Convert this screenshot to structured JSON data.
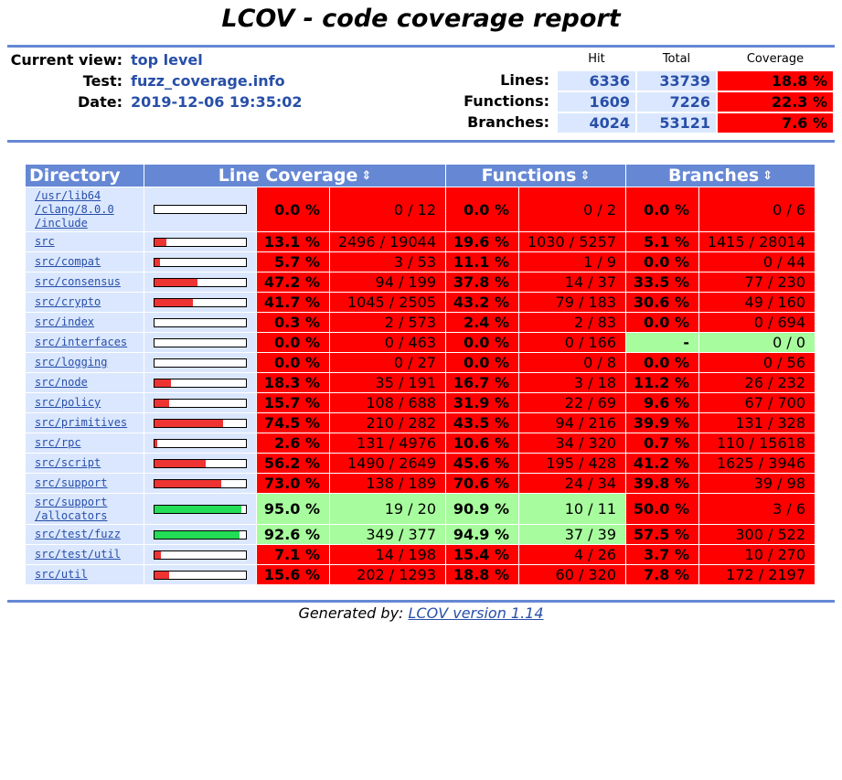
{
  "title": "LCOV - code coverage report",
  "info": {
    "current_view_label": "Current view:",
    "current_view": "top level",
    "test_label": "Test:",
    "test": "fuzz_coverage.info",
    "date_label": "Date:",
    "date": "2019-12-06 19:35:02"
  },
  "summary": {
    "headers": {
      "hit": "Hit",
      "total": "Total",
      "coverage": "Coverage"
    },
    "rows": [
      {
        "label": "Lines:",
        "hit": "6336",
        "total": "33739",
        "coverage": "18.8 %"
      },
      {
        "label": "Functions:",
        "hit": "1609",
        "total": "7226",
        "coverage": "22.3 %"
      },
      {
        "label": "Branches:",
        "hit": "4024",
        "total": "53121",
        "coverage": "7.6 %"
      }
    ]
  },
  "table": {
    "headers": {
      "directory": "Directory",
      "line_coverage": "Line Coverage",
      "functions": "Functions",
      "branches": "Branches"
    },
    "sort_glyph": "⇕",
    "colors": {
      "low": "#ff0000",
      "high": "#a7fc9d",
      "bar_low": "#ee3333",
      "bar_high": "#22dd55"
    },
    "rows": [
      {
        "dir_lines": [
          "/usr/lib64",
          "/clang/8.0.0",
          "/include"
        ],
        "line_frac": 0.0,
        "line_level": "lo",
        "line_pct": "0.0 %",
        "line_num": "0 / 12",
        "func_level": "lo",
        "func_pct": "0.0 %",
        "func_num": "0 / 2",
        "br_level": "lo",
        "br_pct": "0.0 %",
        "br_num": "0 / 6"
      },
      {
        "dir_lines": [
          "src"
        ],
        "line_frac": 0.131,
        "line_level": "lo",
        "line_pct": "13.1 %",
        "line_num": "2496 / 19044",
        "func_level": "lo",
        "func_pct": "19.6 %",
        "func_num": "1030 / 5257",
        "br_level": "lo",
        "br_pct": "5.1 %",
        "br_num": "1415 / 28014"
      },
      {
        "dir_lines": [
          "src/compat"
        ],
        "line_frac": 0.057,
        "line_level": "lo",
        "line_pct": "5.7 %",
        "line_num": "3 / 53",
        "func_level": "lo",
        "func_pct": "11.1 %",
        "func_num": "1 / 9",
        "br_level": "lo",
        "br_pct": "0.0 %",
        "br_num": "0 / 44"
      },
      {
        "dir_lines": [
          "src/consensus"
        ],
        "line_frac": 0.472,
        "line_level": "lo",
        "line_pct": "47.2 %",
        "line_num": "94 / 199",
        "func_level": "lo",
        "func_pct": "37.8 %",
        "func_num": "14 / 37",
        "br_level": "lo",
        "br_pct": "33.5 %",
        "br_num": "77 / 230"
      },
      {
        "dir_lines": [
          "src/crypto"
        ],
        "line_frac": 0.417,
        "line_level": "lo",
        "line_pct": "41.7 %",
        "line_num": "1045 / 2505",
        "func_level": "lo",
        "func_pct": "43.2 %",
        "func_num": "79 / 183",
        "br_level": "lo",
        "br_pct": "30.6 %",
        "br_num": "49 / 160"
      },
      {
        "dir_lines": [
          "src/index"
        ],
        "line_frac": 0.003,
        "line_level": "lo",
        "line_pct": "0.3 %",
        "line_num": "2 / 573",
        "func_level": "lo",
        "func_pct": "2.4 %",
        "func_num": "2 / 83",
        "br_level": "lo",
        "br_pct": "0.0 %",
        "br_num": "0 / 694"
      },
      {
        "dir_lines": [
          "src/interfaces"
        ],
        "line_frac": 0.0,
        "line_level": "lo",
        "line_pct": "0.0 %",
        "line_num": "0 / 463",
        "func_level": "lo",
        "func_pct": "0.0 %",
        "func_num": "0 / 166",
        "br_level": "hi",
        "br_pct": "-",
        "br_num": "0 / 0"
      },
      {
        "dir_lines": [
          "src/logging"
        ],
        "line_frac": 0.0,
        "line_level": "lo",
        "line_pct": "0.0 %",
        "line_num": "0 / 27",
        "func_level": "lo",
        "func_pct": "0.0 %",
        "func_num": "0 / 8",
        "br_level": "lo",
        "br_pct": "0.0 %",
        "br_num": "0 / 56"
      },
      {
        "dir_lines": [
          "src/node"
        ],
        "line_frac": 0.183,
        "line_level": "lo",
        "line_pct": "18.3 %",
        "line_num": "35 / 191",
        "func_level": "lo",
        "func_pct": "16.7 %",
        "func_num": "3 / 18",
        "br_level": "lo",
        "br_pct": "11.2 %",
        "br_num": "26 / 232"
      },
      {
        "dir_lines": [
          "src/policy"
        ],
        "line_frac": 0.157,
        "line_level": "lo",
        "line_pct": "15.7 %",
        "line_num": "108 / 688",
        "func_level": "lo",
        "func_pct": "31.9 %",
        "func_num": "22 / 69",
        "br_level": "lo",
        "br_pct": "9.6 %",
        "br_num": "67 / 700"
      },
      {
        "dir_lines": [
          "src/primitives"
        ],
        "line_frac": 0.745,
        "line_level": "lo",
        "line_pct": "74.5 %",
        "line_num": "210 / 282",
        "func_level": "lo",
        "func_pct": "43.5 %",
        "func_num": "94 / 216",
        "br_level": "lo",
        "br_pct": "39.9 %",
        "br_num": "131 / 328"
      },
      {
        "dir_lines": [
          "src/rpc"
        ],
        "line_frac": 0.026,
        "line_level": "lo",
        "line_pct": "2.6 %",
        "line_num": "131 / 4976",
        "func_level": "lo",
        "func_pct": "10.6 %",
        "func_num": "34 / 320",
        "br_level": "lo",
        "br_pct": "0.7 %",
        "br_num": "110 / 15618"
      },
      {
        "dir_lines": [
          "src/script"
        ],
        "line_frac": 0.562,
        "line_level": "lo",
        "line_pct": "56.2 %",
        "line_num": "1490 / 2649",
        "func_level": "lo",
        "func_pct": "45.6 %",
        "func_num": "195 / 428",
        "br_level": "lo",
        "br_pct": "41.2 %",
        "br_num": "1625 / 3946"
      },
      {
        "dir_lines": [
          "src/support"
        ],
        "line_frac": 0.73,
        "line_level": "lo",
        "line_pct": "73.0 %",
        "line_num": "138 / 189",
        "func_level": "lo",
        "func_pct": "70.6 %",
        "func_num": "24 / 34",
        "br_level": "lo",
        "br_pct": "39.8 %",
        "br_num": "39 / 98"
      },
      {
        "dir_lines": [
          "src/support",
          "/allocators"
        ],
        "line_frac": 0.95,
        "line_level": "hi",
        "line_pct": "95.0 %",
        "line_num": "19 / 20",
        "func_level": "hi",
        "func_pct": "90.9 %",
        "func_num": "10 / 11",
        "br_level": "lo",
        "br_pct": "50.0 %",
        "br_num": "3 / 6"
      },
      {
        "dir_lines": [
          "src/test/fuzz"
        ],
        "line_frac": 0.926,
        "line_level": "hi",
        "line_pct": "92.6 %",
        "line_num": "349 / 377",
        "func_level": "hi",
        "func_pct": "94.9 %",
        "func_num": "37 / 39",
        "br_level": "lo",
        "br_pct": "57.5 %",
        "br_num": "300 / 522"
      },
      {
        "dir_lines": [
          "src/test/util"
        ],
        "line_frac": 0.071,
        "line_level": "lo",
        "line_pct": "7.1 %",
        "line_num": "14 / 198",
        "func_level": "lo",
        "func_pct": "15.4 %",
        "func_num": "4 / 26",
        "br_level": "lo",
        "br_pct": "3.7 %",
        "br_num": "10 / 270"
      },
      {
        "dir_lines": [
          "src/util"
        ],
        "line_frac": 0.156,
        "line_level": "lo",
        "line_pct": "15.6 %",
        "line_num": "202 / 1293",
        "func_level": "lo",
        "func_pct": "18.8 %",
        "func_num": "60 / 320",
        "br_level": "lo",
        "br_pct": "7.8 %",
        "br_num": "172 / 2197"
      }
    ]
  },
  "footer": {
    "prefix": "Generated by: ",
    "link": "LCOV version 1.14"
  }
}
